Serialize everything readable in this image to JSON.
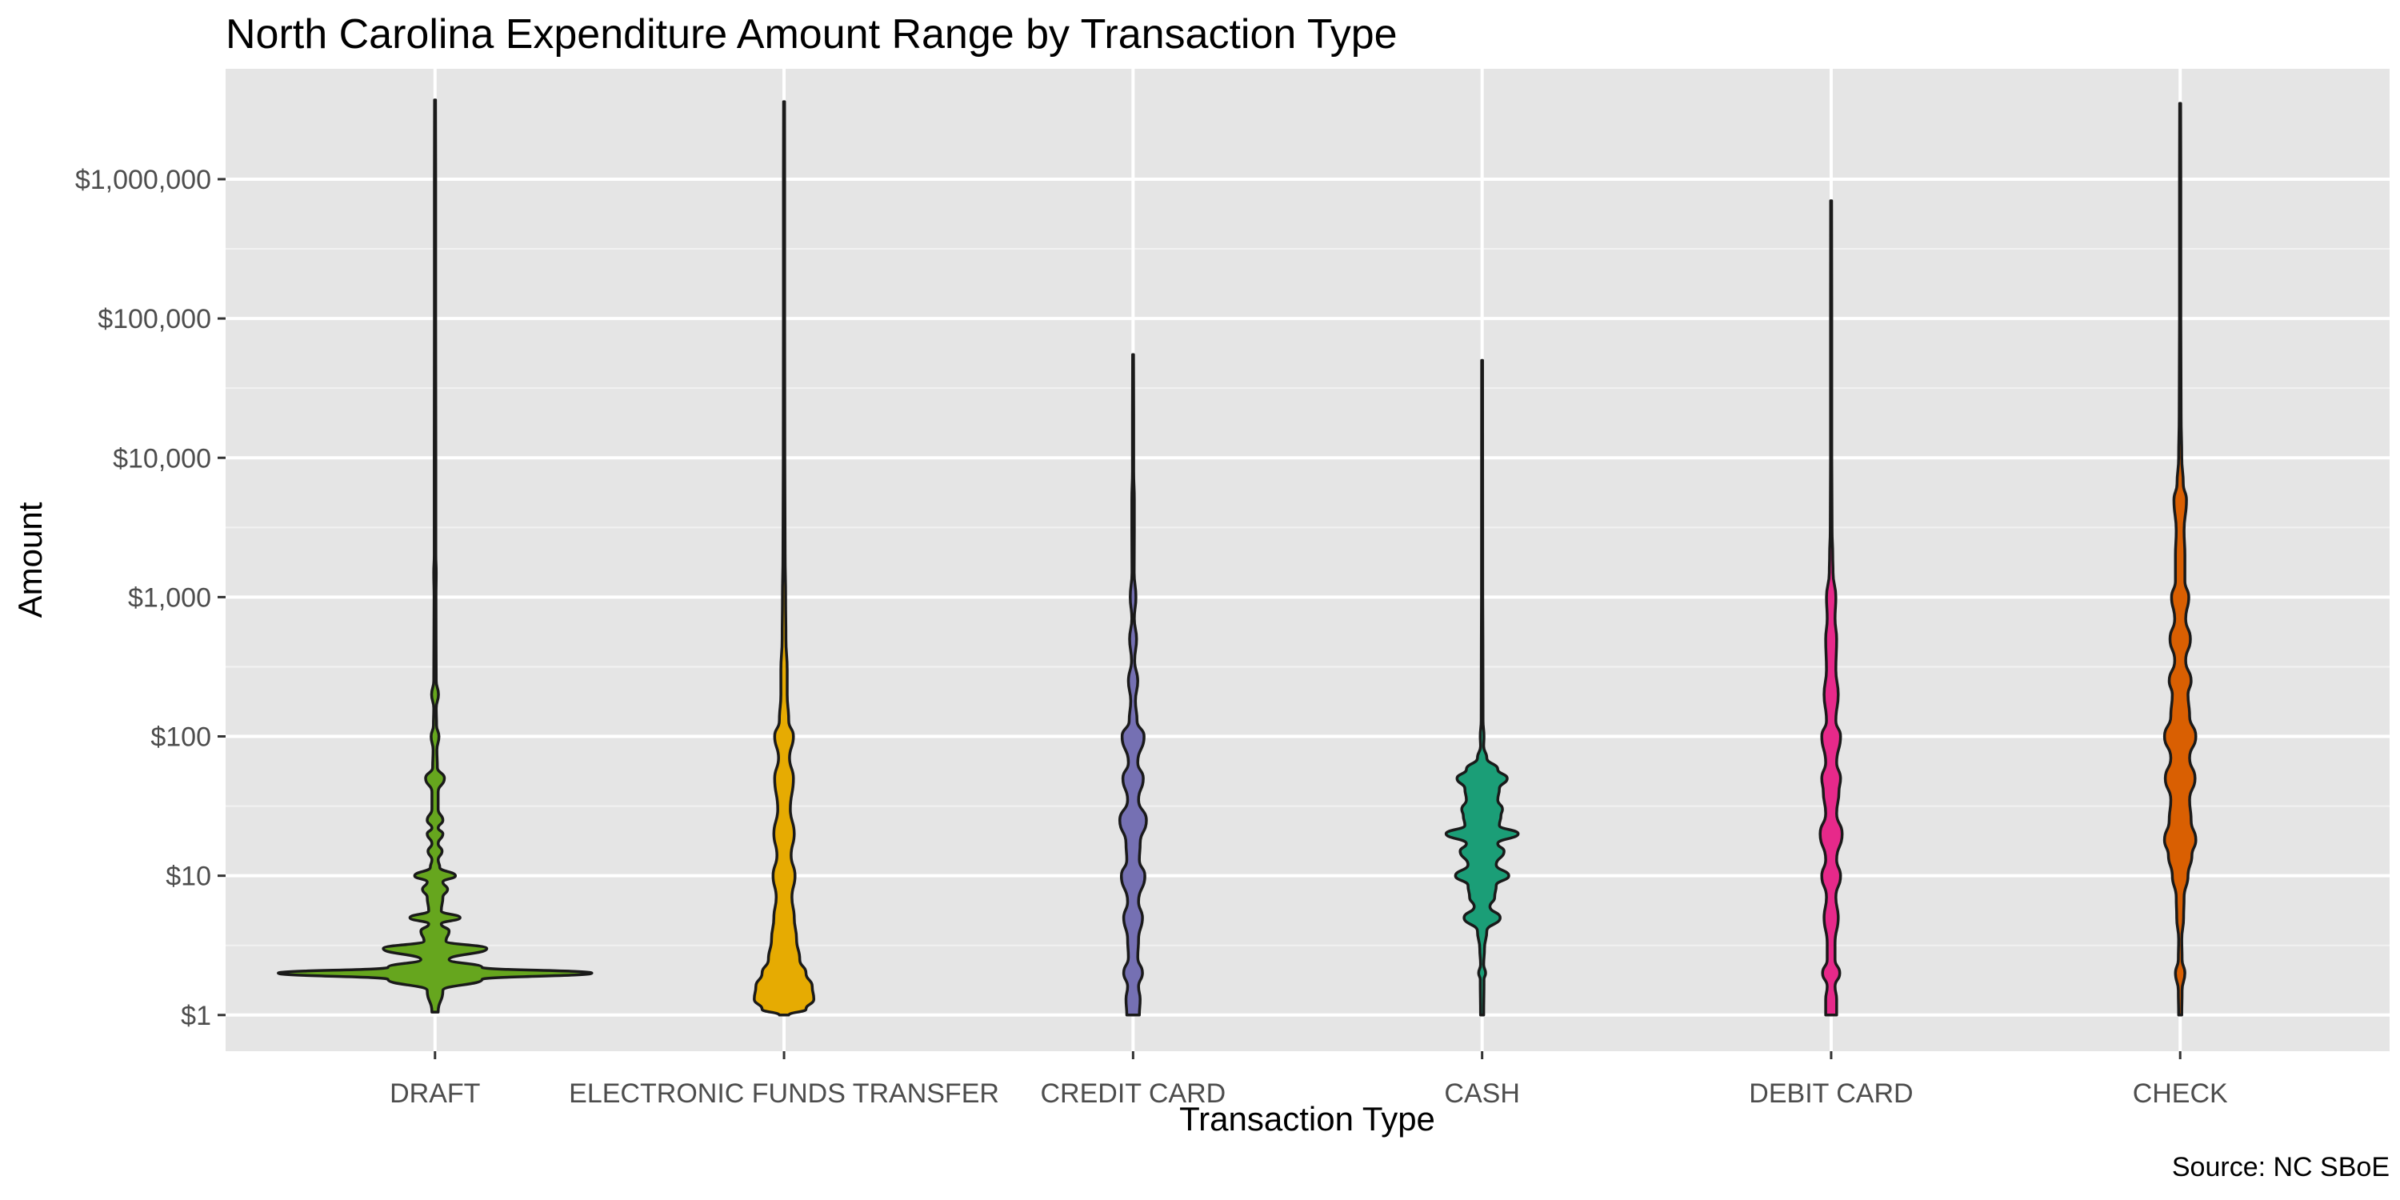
{
  "chart_data": {
    "type": "violin",
    "title": "North Carolina Expenditure Amount Range by Transaction Type",
    "xlabel": "Transaction Type",
    "ylabel": "Amount",
    "caption": "Source: NC SBoE",
    "y_scale": "log10",
    "ylim": [
      0.55,
      6200000
    ],
    "y_ticks": [
      {
        "value": 1,
        "label": "$1"
      },
      {
        "value": 10,
        "label": "$10"
      },
      {
        "value": 100,
        "label": "$100"
      },
      {
        "value": 1000,
        "label": "$1,000"
      },
      {
        "value": 10000,
        "label": "$10,000"
      },
      {
        "value": 100000,
        "label": "$100,000"
      },
      {
        "value": 1000000,
        "label": "$1,000,000"
      }
    ],
    "categories": [
      "DRAFT",
      "ELECTRONIC FUNDS TRANSFER",
      "CREDIT CARD",
      "CASH",
      "DEBIT CARD",
      "CHECK"
    ],
    "grid": true,
    "legend": "none",
    "series": [
      {
        "category": "DRAFT",
        "color": "#66a61e",
        "min": 1,
        "max": 3700000,
        "density": [
          [
            1.05,
            0.02
          ],
          [
            1.5,
            0.05
          ],
          [
            1.8,
            0.3
          ],
          [
            2.0,
            1.0
          ],
          [
            2.2,
            0.3
          ],
          [
            2.5,
            0.09
          ],
          [
            3.0,
            0.33
          ],
          [
            3.4,
            0.07
          ],
          [
            4.0,
            0.09
          ],
          [
            4.5,
            0.04
          ],
          [
            5.0,
            0.16
          ],
          [
            5.6,
            0.04
          ],
          [
            7.0,
            0.05
          ],
          [
            8.0,
            0.08
          ],
          [
            9.0,
            0.05
          ],
          [
            10.0,
            0.13
          ],
          [
            11.5,
            0.03
          ],
          [
            13,
            0.02
          ],
          [
            15,
            0.045
          ],
          [
            17,
            0.02
          ],
          [
            20,
            0.05
          ],
          [
            22,
            0.02
          ],
          [
            25,
            0.05
          ],
          [
            30,
            0.02
          ],
          [
            40,
            0.02
          ],
          [
            50,
            0.06
          ],
          [
            60,
            0.015
          ],
          [
            80,
            0.012
          ],
          [
            100,
            0.025
          ],
          [
            120,
            0.01
          ],
          [
            160,
            0.008
          ],
          [
            200,
            0.022
          ],
          [
            250,
            0.008
          ],
          [
            500,
            0.007
          ],
          [
            1000,
            0.006
          ],
          [
            1500,
            0.008
          ],
          [
            2000,
            0.005
          ],
          [
            10000,
            0.005
          ],
          [
            100000,
            0.004
          ],
          [
            1000000,
            0.004
          ],
          [
            3700000,
            0.003
          ]
        ]
      },
      {
        "category": "ELECTRONIC FUNDS TRANSFER",
        "color": "#e6ab02",
        "min": 1,
        "max": 3600000,
        "density": [
          [
            1.0,
            0.03
          ],
          [
            1.1,
            0.14
          ],
          [
            1.3,
            0.19
          ],
          [
            1.6,
            0.18
          ],
          [
            2.0,
            0.14
          ],
          [
            2.5,
            0.1
          ],
          [
            3.5,
            0.08
          ],
          [
            5.0,
            0.065
          ],
          [
            7.0,
            0.05
          ],
          [
            10.0,
            0.07
          ],
          [
            14,
            0.045
          ],
          [
            20,
            0.065
          ],
          [
            30,
            0.04
          ],
          [
            50,
            0.06
          ],
          [
            70,
            0.035
          ],
          [
            100,
            0.06
          ],
          [
            130,
            0.03
          ],
          [
            200,
            0.02
          ],
          [
            300,
            0.02
          ],
          [
            500,
            0.012
          ],
          [
            1000,
            0.01
          ],
          [
            2000,
            0.007
          ],
          [
            10000,
            0.005
          ],
          [
            100000,
            0.004
          ],
          [
            1000000,
            0.004
          ],
          [
            3600000,
            0.003
          ]
        ]
      },
      {
        "category": "CREDIT CARD",
        "color": "#7570b3",
        "min": 1,
        "max": 55000,
        "density": [
          [
            1.0,
            0.04
          ],
          [
            1.3,
            0.045
          ],
          [
            1.6,
            0.035
          ],
          [
            2.0,
            0.06
          ],
          [
            2.6,
            0.03
          ],
          [
            3.5,
            0.035
          ],
          [
            5.0,
            0.06
          ],
          [
            6.5,
            0.035
          ],
          [
            10,
            0.075
          ],
          [
            13,
            0.04
          ],
          [
            17,
            0.045
          ],
          [
            25,
            0.085
          ],
          [
            35,
            0.035
          ],
          [
            50,
            0.065
          ],
          [
            65,
            0.03
          ],
          [
            100,
            0.07
          ],
          [
            130,
            0.025
          ],
          [
            180,
            0.015
          ],
          [
            250,
            0.03
          ],
          [
            350,
            0.01
          ],
          [
            500,
            0.022
          ],
          [
            700,
            0.008
          ],
          [
            1000,
            0.018
          ],
          [
            1500,
            0.007
          ],
          [
            3000,
            0.008
          ],
          [
            5000,
            0.008
          ],
          [
            8000,
            0.004
          ],
          [
            20000,
            0.004
          ],
          [
            55000,
            0.003
          ]
        ]
      },
      {
        "category": "CASH",
        "color": "#1b9e77",
        "min": 1,
        "max": 50000,
        "density": [
          [
            1.0,
            0.01
          ],
          [
            1.8,
            0.012
          ],
          [
            2.0,
            0.022
          ],
          [
            2.3,
            0.01
          ],
          [
            3.0,
            0.015
          ],
          [
            4.0,
            0.03
          ],
          [
            5.0,
            0.115
          ],
          [
            6.0,
            0.05
          ],
          [
            7.0,
            0.08
          ],
          [
            8.5,
            0.09
          ],
          [
            10,
            0.17
          ],
          [
            12,
            0.09
          ],
          [
            15,
            0.14
          ],
          [
            17,
            0.1
          ],
          [
            20,
            0.23
          ],
          [
            23,
            0.11
          ],
          [
            27,
            0.12
          ],
          [
            30,
            0.13
          ],
          [
            35,
            0.1
          ],
          [
            42,
            0.11
          ],
          [
            50,
            0.16
          ],
          [
            58,
            0.1
          ],
          [
            70,
            0.03
          ],
          [
            85,
            0.01
          ],
          [
            100,
            0.012
          ],
          [
            130,
            0.006
          ],
          [
            500,
            0.005
          ],
          [
            1000,
            0.004
          ],
          [
            50000,
            0.003
          ]
        ]
      },
      {
        "category": "DEBIT CARD",
        "color": "#e7298a",
        "min": 1,
        "max": 700000,
        "density": [
          [
            1.0,
            0.035
          ],
          [
            1.3,
            0.035
          ],
          [
            1.6,
            0.025
          ],
          [
            2.0,
            0.055
          ],
          [
            2.5,
            0.025
          ],
          [
            3.3,
            0.025
          ],
          [
            5.0,
            0.045
          ],
          [
            7.0,
            0.03
          ],
          [
            10,
            0.06
          ],
          [
            13,
            0.035
          ],
          [
            20,
            0.07
          ],
          [
            28,
            0.035
          ],
          [
            40,
            0.05
          ],
          [
            50,
            0.06
          ],
          [
            65,
            0.035
          ],
          [
            100,
            0.06
          ],
          [
            130,
            0.03
          ],
          [
            200,
            0.045
          ],
          [
            300,
            0.03
          ],
          [
            500,
            0.035
          ],
          [
            700,
            0.025
          ],
          [
            1000,
            0.03
          ],
          [
            1500,
            0.012
          ],
          [
            2000,
            0.01
          ],
          [
            3000,
            0.006
          ],
          [
            10000,
            0.004
          ],
          [
            100000,
            0.004
          ],
          [
            700000,
            0.003
          ]
        ]
      },
      {
        "category": "CHECK",
        "color": "#d95f02",
        "min": 1,
        "max": 3500000,
        "density": [
          [
            1.0,
            0.01
          ],
          [
            1.5,
            0.012
          ],
          [
            2.0,
            0.03
          ],
          [
            2.5,
            0.012
          ],
          [
            3.5,
            0.01
          ],
          [
            5.0,
            0.022
          ],
          [
            7.0,
            0.025
          ],
          [
            10,
            0.05
          ],
          [
            14,
            0.075
          ],
          [
            18,
            0.1
          ],
          [
            25,
            0.07
          ],
          [
            35,
            0.06
          ],
          [
            50,
            0.095
          ],
          [
            70,
            0.06
          ],
          [
            100,
            0.1
          ],
          [
            140,
            0.06
          ],
          [
            200,
            0.05
          ],
          [
            250,
            0.07
          ],
          [
            350,
            0.035
          ],
          [
            500,
            0.065
          ],
          [
            700,
            0.035
          ],
          [
            1000,
            0.055
          ],
          [
            1300,
            0.03
          ],
          [
            2000,
            0.03
          ],
          [
            3000,
            0.025
          ],
          [
            5000,
            0.04
          ],
          [
            6500,
            0.02
          ],
          [
            10000,
            0.01
          ],
          [
            20000,
            0.006
          ],
          [
            100000,
            0.004
          ],
          [
            1000000,
            0.004
          ],
          [
            3500000,
            0.003
          ]
        ]
      }
    ]
  }
}
